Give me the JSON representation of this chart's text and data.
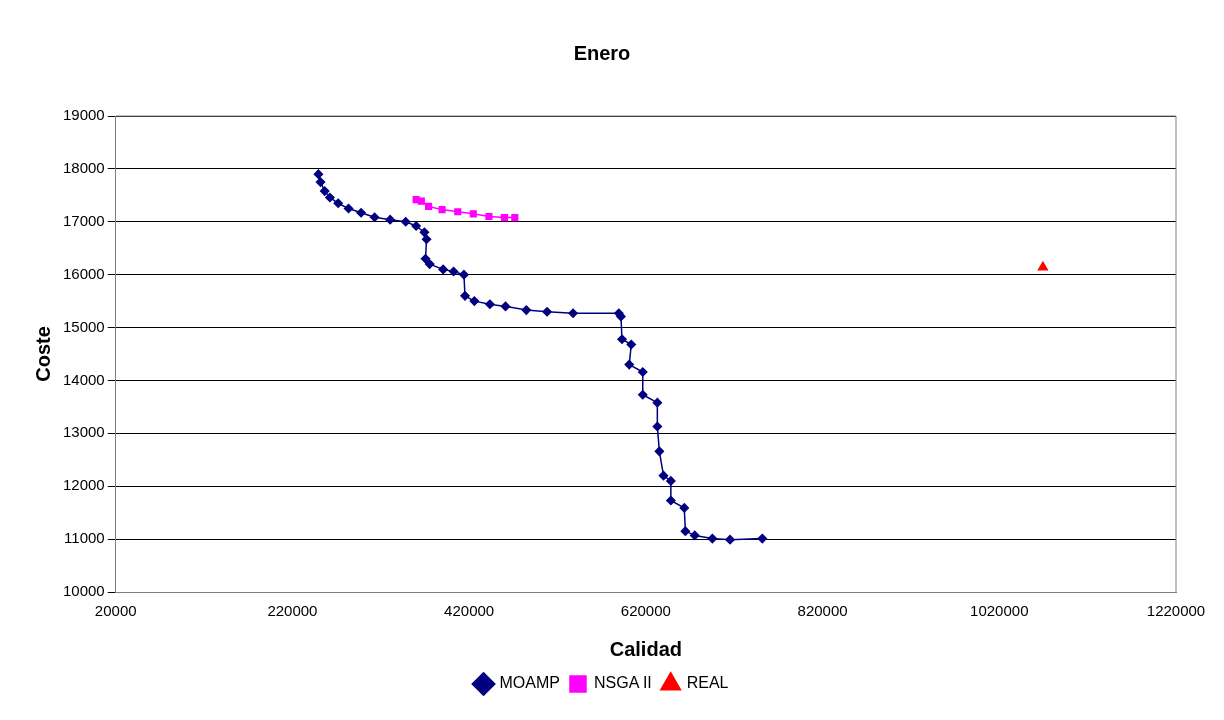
{
  "chart_data": {
    "type": "line",
    "title": "Enero",
    "xlabel": "Calidad",
    "ylabel": "Coste",
    "xlim": [
      20000,
      1220000
    ],
    "xticks": [
      20000,
      220000,
      420000,
      620000,
      820000,
      1020000,
      1220000
    ],
    "ylim": [
      10000,
      19000
    ],
    "yticks": [
      10000,
      11000,
      12000,
      13000,
      14000,
      15000,
      16000,
      17000,
      18000,
      19000
    ],
    "grid": "y",
    "legend": "bottom",
    "line_style": "solid",
    "series": [
      {
        "name": "MOAMP",
        "color": "#000080",
        "marker": "diamond",
        "x": [
          249400,
          251800,
          256500,
          262400,
          271800,
          283500,
          297700,
          313000,
          330600,
          348200,
          360000,
          369400,
          371800,
          370600,
          375300,
          390600,
          402400,
          414100,
          415300,
          425900,
          443500,
          461200,
          484700,
          508200,
          537600,
          589400,
          591800,
          593000,
          603500,
          601200,
          616500,
          616500,
          633000,
          633000,
          635300,
          640000,
          648300,
          648300,
          663500,
          664700,
          675300,
          695300,
          715300,
          751800
        ],
        "values": [
          17900,
          17750,
          17580,
          17460,
          17350,
          17250,
          17170,
          17085,
          17040,
          17000,
          16920,
          16800,
          16670,
          16300,
          16200,
          16100,
          16060,
          16000,
          15600,
          15500,
          15440,
          15400,
          15330,
          15300,
          15270,
          15270,
          15210,
          14780,
          14680,
          14300,
          14160,
          13730,
          13580,
          13130,
          12660,
          12200,
          12100,
          11730,
          11590,
          11150,
          11070,
          11010,
          10990,
          11010
        ]
      },
      {
        "name": "NSGA II",
        "color": "#ff00ff",
        "marker": "square",
        "x": [
          360000,
          365900,
          374100,
          389400,
          407100,
          424700,
          442400,
          460000,
          471700
        ],
        "values": [
          17420,
          17390,
          17290,
          17230,
          17190,
          17150,
          17100,
          17080,
          17080
        ]
      },
      {
        "name": "REAL",
        "color": "#ff0000",
        "marker": "triangle",
        "x": [
          1069400
        ],
        "values": [
          16140
        ]
      }
    ]
  }
}
